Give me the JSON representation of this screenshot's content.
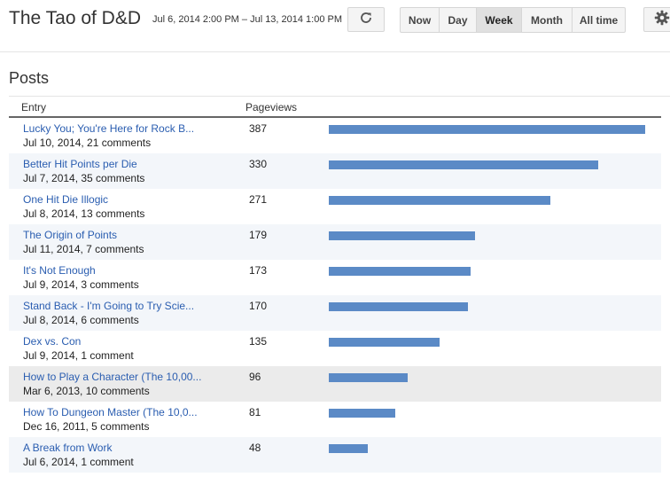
{
  "header": {
    "blog_title": "The Tao of D&D",
    "date_range": "Jul 6, 2014 2:00 PM – Jul 13, 2014 1:00 PM",
    "refresh_icon": "refresh-icon",
    "range_buttons": [
      {
        "label": "Now",
        "active": false
      },
      {
        "label": "Day",
        "active": false
      },
      {
        "label": "Week",
        "active": true
      },
      {
        "label": "Month",
        "active": false
      },
      {
        "label": "All time",
        "active": false
      }
    ],
    "settings_icon": "gear-icon"
  },
  "posts": {
    "section_title": "Posts",
    "columns": {
      "entry": "Entry",
      "pageviews": "Pageviews"
    },
    "max_pageviews": 387,
    "bar_color": "#5b8ac6",
    "rows": [
      {
        "title": "Lucky You; You're Here for Rock B...",
        "meta": "Jul 10, 2014, 21 comments",
        "pageviews": 387
      },
      {
        "title": "Better Hit Points per Die",
        "meta": "Jul 7, 2014, 35 comments",
        "pageviews": 330
      },
      {
        "title": "One Hit Die Illogic",
        "meta": "Jul 8, 2014, 13 comments",
        "pageviews": 271
      },
      {
        "title": "The Origin of Points",
        "meta": "Jul 11, 2014, 7 comments",
        "pageviews": 179
      },
      {
        "title": "It's Not Enough",
        "meta": "Jul 9, 2014, 3 comments",
        "pageviews": 173
      },
      {
        "title": "Stand Back - I'm Going to Try Scie...",
        "meta": "Jul 8, 2014, 6 comments",
        "pageviews": 170
      },
      {
        "title": "Dex vs. Con",
        "meta": "Jul 9, 2014, 1 comment",
        "pageviews": 135
      },
      {
        "title": "How to Play a Character (The 10,00...",
        "meta": "Mar 6, 2013, 10 comments",
        "pageviews": 96
      },
      {
        "title": "How To Dungeon Master (The 10,0...",
        "meta": "Dec 16, 2011, 5 comments",
        "pageviews": 81
      },
      {
        "title": "A Break from Work",
        "meta": "Jul 6, 2014, 1 comment",
        "pageviews": 48
      }
    ]
  }
}
